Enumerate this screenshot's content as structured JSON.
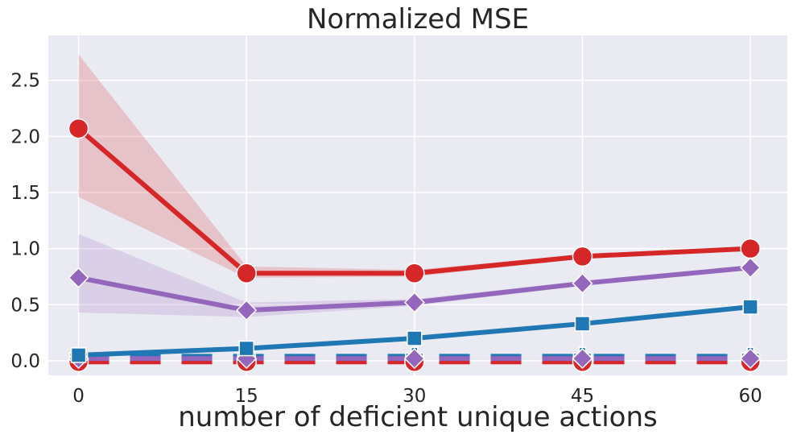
{
  "chart_data": {
    "type": "line",
    "title": "Normalized MSE",
    "xlabel": "number of deficient unique actions",
    "ylabel": "",
    "x": [
      0,
      15,
      30,
      45,
      60
    ],
    "xlim": [
      -2.7,
      63.3
    ],
    "ylim": [
      -0.13,
      2.9
    ],
    "xticks": [
      0,
      15,
      30,
      45,
      60
    ],
    "yticks": [
      0.0,
      0.5,
      1.0,
      1.5,
      2.0,
      2.5
    ],
    "ytick_labels": [
      "0.0",
      "0.5",
      "1.0",
      "1.5",
      "2.0",
      "2.5"
    ],
    "grid": true,
    "background": "#eaeaf2",
    "series": [
      {
        "values": [
          2.07,
          0.78,
          0.78,
          0.93,
          1.0
        ],
        "band_low": [
          1.46,
          0.74,
          0.75,
          0.91,
          0.99
        ],
        "band_high": [
          2.73,
          0.84,
          0.81,
          0.95,
          1.01
        ],
        "color": "#d62728",
        "marker": "circle",
        "style": "solid"
      },
      {
        "values": [
          0.74,
          0.45,
          0.52,
          0.69,
          0.83
        ],
        "band_low": [
          0.43,
          0.39,
          0.49,
          0.67,
          0.82
        ],
        "band_high": [
          1.13,
          0.52,
          0.55,
          0.71,
          0.84
        ],
        "color": "#9467bd",
        "marker": "diamond",
        "style": "solid"
      },
      {
        "values": [
          0.05,
          0.11,
          0.2,
          0.33,
          0.48
        ],
        "color": "#1f77b4",
        "marker": "square",
        "style": "solid"
      },
      {
        "values": [
          0.04,
          0.04,
          0.04,
          0.04,
          0.04
        ],
        "color": "#1f77b4",
        "marker": "plus",
        "style": "dashed"
      },
      {
        "values": [
          -0.01,
          -0.01,
          -0.01,
          -0.01,
          -0.01
        ],
        "color": "#d62728",
        "marker": "circle",
        "style": "dashed"
      },
      {
        "values": [
          0.02,
          0.02,
          0.02,
          0.02,
          0.02
        ],
        "color": "#9467bd",
        "marker": "diamond",
        "style": "dashed"
      }
    ]
  }
}
